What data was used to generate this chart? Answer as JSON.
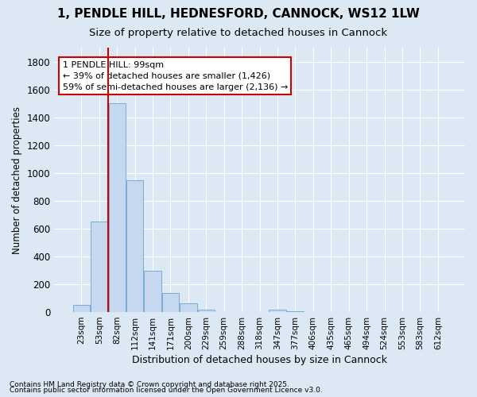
{
  "title1": "1, PENDLE HILL, HEDNESFORD, CANNOCK, WS12 1LW",
  "title2": "Size of property relative to detached houses in Cannock",
  "xlabel": "Distribution of detached houses by size in Cannock",
  "ylabel": "Number of detached properties",
  "categories": [
    "23sqm",
    "53sqm",
    "82sqm",
    "112sqm",
    "141sqm",
    "171sqm",
    "200sqm",
    "229sqm",
    "259sqm",
    "288sqm",
    "318sqm",
    "347sqm",
    "377sqm",
    "406sqm",
    "435sqm",
    "465sqm",
    "494sqm",
    "524sqm",
    "553sqm",
    "583sqm",
    "612sqm"
  ],
  "values": [
    50,
    650,
    1500,
    950,
    295,
    135,
    65,
    20,
    0,
    0,
    0,
    15,
    7,
    2,
    0,
    0,
    0,
    0,
    0,
    0,
    0
  ],
  "bar_color": "#c5d8f0",
  "bar_edge_color": "#7aadd4",
  "vline_color": "#cc0000",
  "annotation_text": "1 PENDLE HILL: 99sqm\n← 39% of detached houses are smaller (1,426)\n59% of semi-detached houses are larger (2,136) →",
  "annotation_box_color": "#ffffff",
  "annotation_box_edge": "#cc0000",
  "ylim": [
    0,
    1900
  ],
  "yticks": [
    0,
    200,
    400,
    600,
    800,
    1000,
    1200,
    1400,
    1600,
    1800
  ],
  "background_color": "#dde8f5",
  "grid_color": "#ffffff",
  "footnote1": "Contains HM Land Registry data © Crown copyright and database right 2025.",
  "footnote2": "Contains public sector information licensed under the Open Government Licence v3.0."
}
